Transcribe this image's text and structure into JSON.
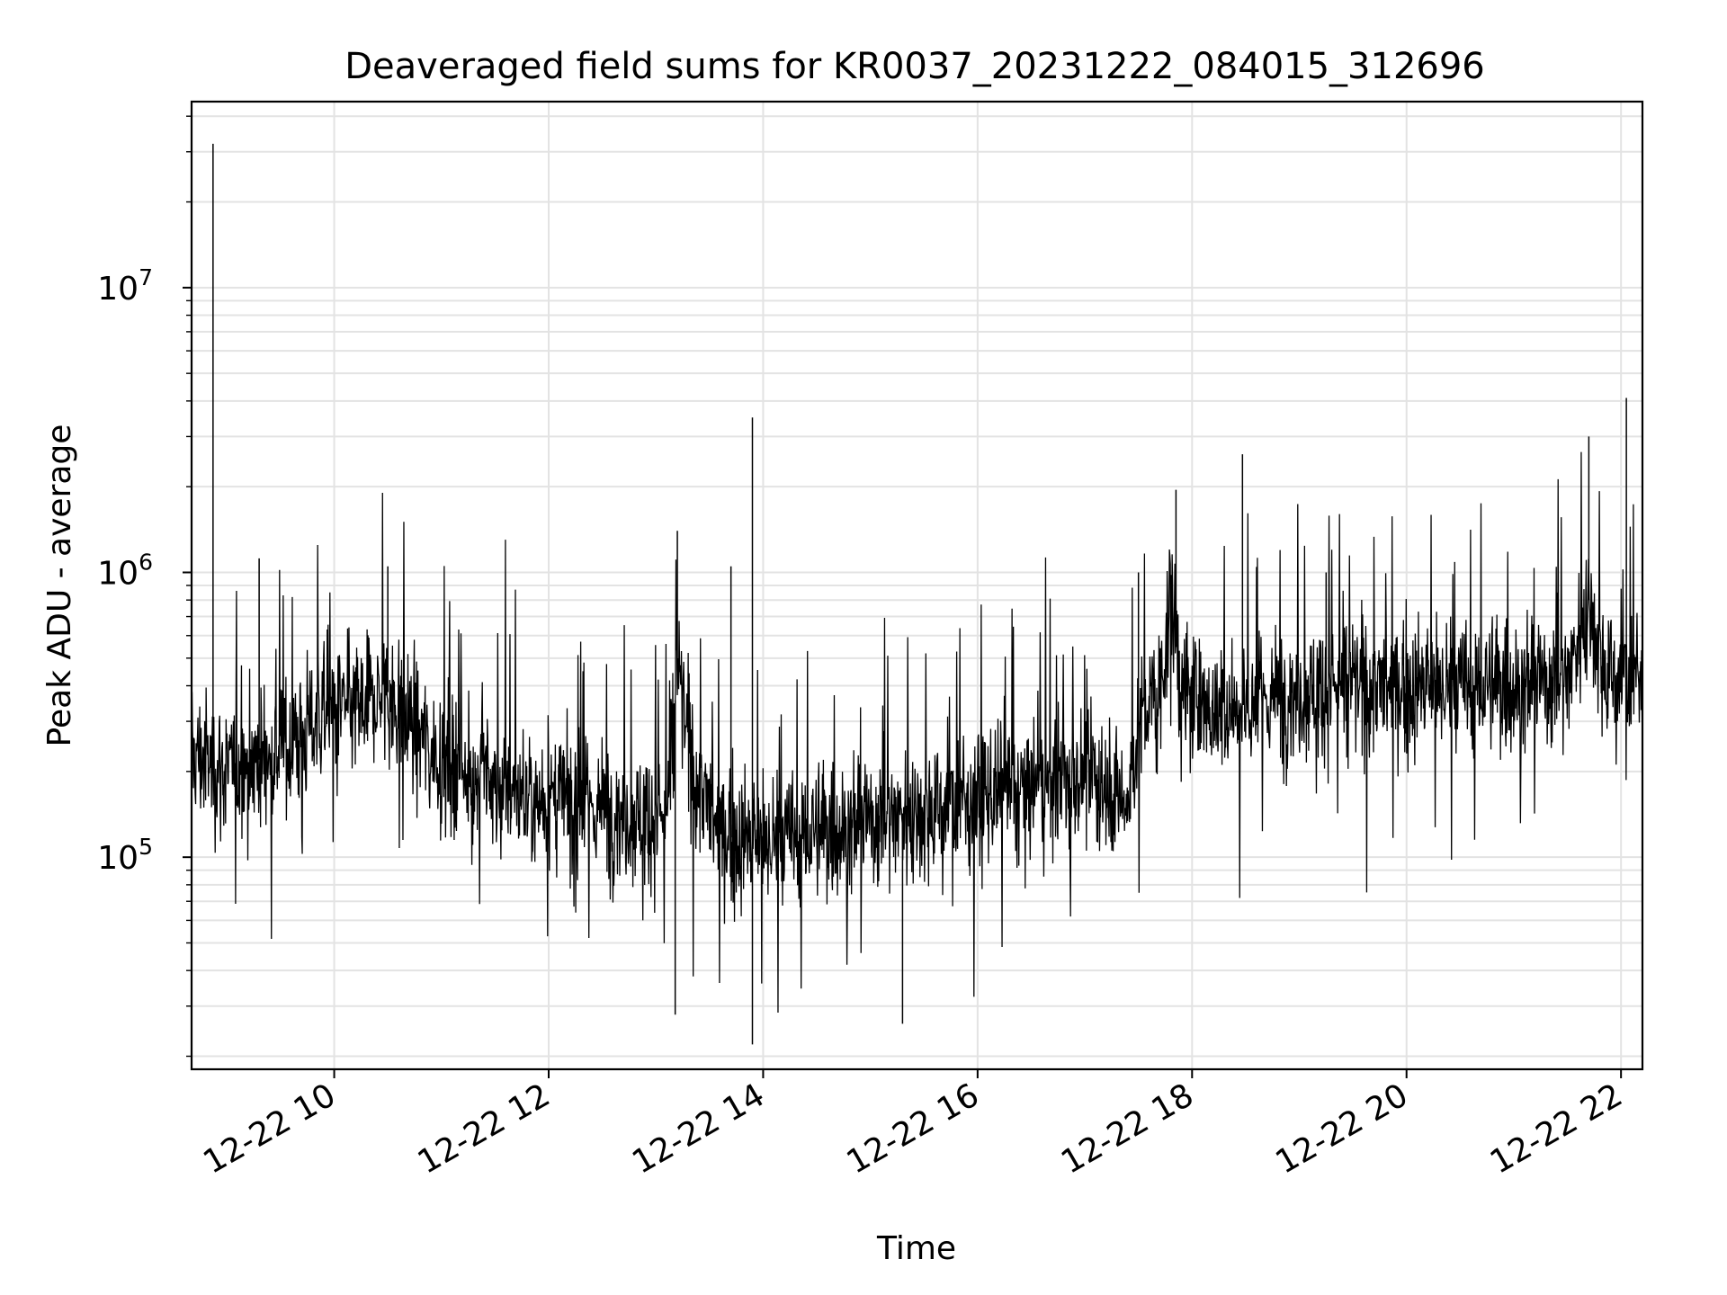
{
  "chart_data": {
    "type": "line",
    "title": "Deaveraged field sums for KR0037_20231222_084015_312696",
    "xlabel": "Time",
    "ylabel": "Peak ADU - average",
    "x_tick_labels": [
      "12-22 10",
      "12-22 12",
      "12-22 14",
      "12-22 16",
      "12-22 18",
      "12-22 20",
      "12-22 22"
    ],
    "x_ticks_hour": [
      10,
      12,
      14,
      16,
      18,
      20,
      22
    ],
    "xlim_hour": [
      8.67,
      22.2
    ],
    "y_scale": "log",
    "ylim": [
      18000,
      45000000
    ],
    "y_tick_labels": [
      {
        "base": "10",
        "exp": "5",
        "value": 100000
      },
      {
        "base": "10",
        "exp": "6",
        "value": 1000000
      },
      {
        "base": "10",
        "exp": "7",
        "value": 10000000
      }
    ],
    "grid": true,
    "line_color": "#000000",
    "series": [
      {
        "name": "",
        "hour": [
          8.67,
          9.0,
          9.3,
          9.6,
          9.9,
          10.2,
          10.5,
          10.7,
          11.0,
          11.3,
          11.6,
          12.0,
          12.4,
          12.8,
          13.1,
          13.2,
          13.35,
          13.6,
          14.0,
          14.4,
          14.8,
          15.2,
          15.6,
          16.0,
          16.4,
          16.8,
          17.2,
          17.4,
          17.5,
          17.7,
          17.8,
          17.9,
          18.1,
          18.4,
          18.7,
          19.0,
          19.3,
          19.6,
          20.0,
          20.4,
          20.8,
          21.2,
          21.5,
          21.7,
          21.85,
          22.0,
          22.2
        ],
        "median": [
          230000,
          200000,
          220000,
          250000,
          320000,
          330000,
          380000,
          300000,
          220000,
          200000,
          170000,
          160000,
          150000,
          140000,
          140000,
          450000,
          200000,
          120000,
          110000,
          120000,
          130000,
          140000,
          150000,
          160000,
          170000,
          185000,
          190000,
          150000,
          300000,
          380000,
          800000,
          400000,
          330000,
          340000,
          360000,
          380000,
          400000,
          400000,
          390000,
          390000,
          400000,
          410000,
          430000,
          800000,
          450000,
          430000,
          420000
        ]
      }
    ],
    "spikes": [
      {
        "hour": 8.87,
        "value": 32000000
      },
      {
        "hour": 13.9,
        "value": 3500000
      },
      {
        "hour": 22.05,
        "value": 4100000
      },
      {
        "hour": 21.7,
        "value": 3000000
      },
      {
        "hour": 18.47,
        "value": 2600000
      },
      {
        "hour": 17.85,
        "value": 1950000
      },
      {
        "hour": 13.2,
        "value": 1400000
      },
      {
        "hour": 10.5,
        "value": 1050000
      },
      {
        "hour": 13.7,
        "value": 1050000
      },
      {
        "hour": 9.3,
        "value": 1120000
      },
      {
        "hour": 17.5,
        "value": 1000000
      },
      {
        "hour": 19.25,
        "value": 1000000
      },
      {
        "hour": 13.9,
        "value": 22000
      },
      {
        "hour": 15.3,
        "value": 26000
      },
      {
        "hour": 13.18,
        "value": 28000
      }
    ]
  }
}
